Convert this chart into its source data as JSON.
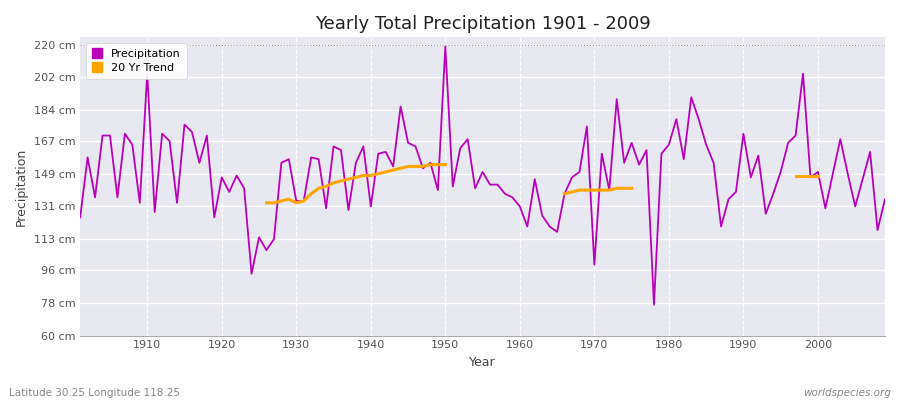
{
  "title": "Yearly Total Precipitation 1901 - 2009",
  "xlabel": "Year",
  "ylabel": "Precipitation",
  "bottom_left_label": "Latitude 30.25 Longitude 118.25",
  "bottom_right_label": "worldspecies.org",
  "yticks": [
    60,
    78,
    96,
    113,
    131,
    149,
    167,
    184,
    202,
    220
  ],
  "ytick_labels": [
    "60 cm",
    "78 cm",
    "96 cm",
    "113 cm",
    "131 cm",
    "149 cm",
    "167 cm",
    "184 cm",
    "202 cm",
    "220 cm"
  ],
  "xticks": [
    1910,
    1920,
    1930,
    1940,
    1950,
    1960,
    1970,
    1980,
    1990,
    2000
  ],
  "xlim_min": 1901,
  "xlim_max": 2009,
  "ylim_min": 60,
  "ylim_max": 224,
  "precip_color": "#bb00bb",
  "trend_color": "#FFA500",
  "fig_bg": "#ffffff",
  "ax_bg": "#e8e8f0",
  "years": [
    1901,
    1902,
    1903,
    1904,
    1905,
    1906,
    1907,
    1908,
    1909,
    1910,
    1911,
    1912,
    1913,
    1914,
    1915,
    1916,
    1917,
    1918,
    1919,
    1920,
    1921,
    1922,
    1923,
    1924,
    1925,
    1926,
    1927,
    1928,
    1929,
    1930,
    1931,
    1932,
    1933,
    1934,
    1935,
    1936,
    1937,
    1938,
    1939,
    1940,
    1941,
    1942,
    1943,
    1944,
    1945,
    1946,
    1947,
    1948,
    1949,
    1950,
    1951,
    1952,
    1953,
    1954,
    1955,
    1956,
    1957,
    1958,
    1959,
    1960,
    1961,
    1962,
    1963,
    1964,
    1965,
    1966,
    1967,
    1968,
    1969,
    1970,
    1971,
    1972,
    1973,
    1974,
    1975,
    1976,
    1977,
    1978,
    1979,
    1980,
    1981,
    1982,
    1983,
    1984,
    1985,
    1986,
    1987,
    1988,
    1989,
    1990,
    1991,
    1992,
    1993,
    1994,
    1995,
    1996,
    1997,
    1998,
    1999,
    2000,
    2001,
    2002,
    2003,
    2004,
    2005,
    2006,
    2007,
    2008,
    2009
  ],
  "precip": [
    125,
    158,
    136,
    170,
    170,
    136,
    171,
    165,
    133,
    204,
    128,
    171,
    167,
    133,
    176,
    172,
    155,
    170,
    125,
    147,
    139,
    148,
    141,
    94,
    114,
    107,
    113,
    155,
    157,
    134,
    134,
    158,
    157,
    130,
    164,
    162,
    129,
    155,
    164,
    131,
    160,
    161,
    153,
    186,
    166,
    164,
    152,
    155,
    140,
    219,
    142,
    163,
    168,
    141,
    150,
    143,
    143,
    138,
    136,
    131,
    120,
    146,
    126,
    120,
    117,
    138,
    147,
    150,
    175,
    99,
    160,
    140,
    190,
    155,
    166,
    154,
    162,
    77,
    160,
    165,
    179,
    157,
    191,
    179,
    165,
    155,
    120,
    135,
    139,
    171,
    147,
    159,
    127,
    138,
    150,
    166,
    170,
    204,
    147,
    150,
    130,
    149,
    168,
    149,
    131,
    146,
    161,
    118,
    135
  ],
  "trend_seg1_years": [
    1926,
    1927,
    1928,
    1929,
    1930,
    1931,
    1932,
    1933,
    1934,
    1935,
    1936,
    1937,
    1938,
    1939,
    1940,
    1941,
    1942,
    1943,
    1944,
    1945,
    1946,
    1947,
    1948,
    1949,
    1950
  ],
  "trend_seg1_vals": [
    133,
    133,
    134,
    135,
    133,
    134,
    138,
    141,
    142,
    144,
    145,
    146,
    147,
    148,
    148,
    149,
    150,
    151,
    152,
    153,
    153,
    153,
    154,
    154,
    154
  ],
  "trend_seg2_years": [
    1966,
    1967,
    1968,
    1969,
    1970,
    1971,
    1972,
    1973,
    1974,
    1975
  ],
  "trend_seg2_vals": [
    138,
    139,
    140,
    140,
    140,
    140,
    140,
    141,
    141,
    141
  ],
  "trend_seg3_years": [
    1997,
    1998,
    1999,
    2000
  ],
  "trend_seg3_vals": [
    148,
    148,
    148,
    148
  ]
}
